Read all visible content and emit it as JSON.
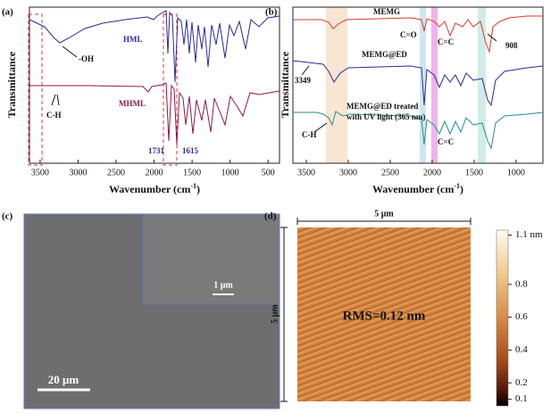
{
  "panels": [
    {
      "label": "(a)",
      "ylabel": "Transmittance",
      "xlabel": [
        "Wavenumber (cm",
        "-1",
        ")"
      ],
      "xlim": [
        3640,
        350
      ],
      "xticks": [
        3500,
        3000,
        2500,
        2000,
        1500,
        1000,
        500
      ],
      "annotations": [
        "HML",
        "MHML",
        "-OH",
        "C-H",
        "1731",
        "1615"
      ]
    },
    {
      "label": "(b)",
      "ylabel": "Transmittance",
      "xlabel": [
        "Wavenumber (cm",
        "-1",
        ")"
      ],
      "xlim": [
        3660,
        680
      ],
      "xticks": [
        3500,
        3000,
        2500,
        2000,
        1500,
        1000
      ],
      "annotations": [
        "MEMG",
        "MEMG@ED",
        "MEMG@ED treated",
        "with UV light (365 nm)",
        "C=O",
        "C=C",
        "C=C",
        "908",
        "3349",
        "C-H"
      ]
    },
    {
      "label": "(c)",
      "scale_bars": [
        "20 μm",
        "1 μm"
      ]
    },
    {
      "label": "(d)",
      "scan_size": "5 μm",
      "rms": "RMS=0.12 nm",
      "clim": [
        0.06,
        1.13
      ],
      "colorbar_ticks": [
        {
          "value": 1.1,
          "label": "1.1 nm"
        },
        0.8,
        0.6,
        0.4,
        0.2,
        0.1
      ]
    }
  ]
}
